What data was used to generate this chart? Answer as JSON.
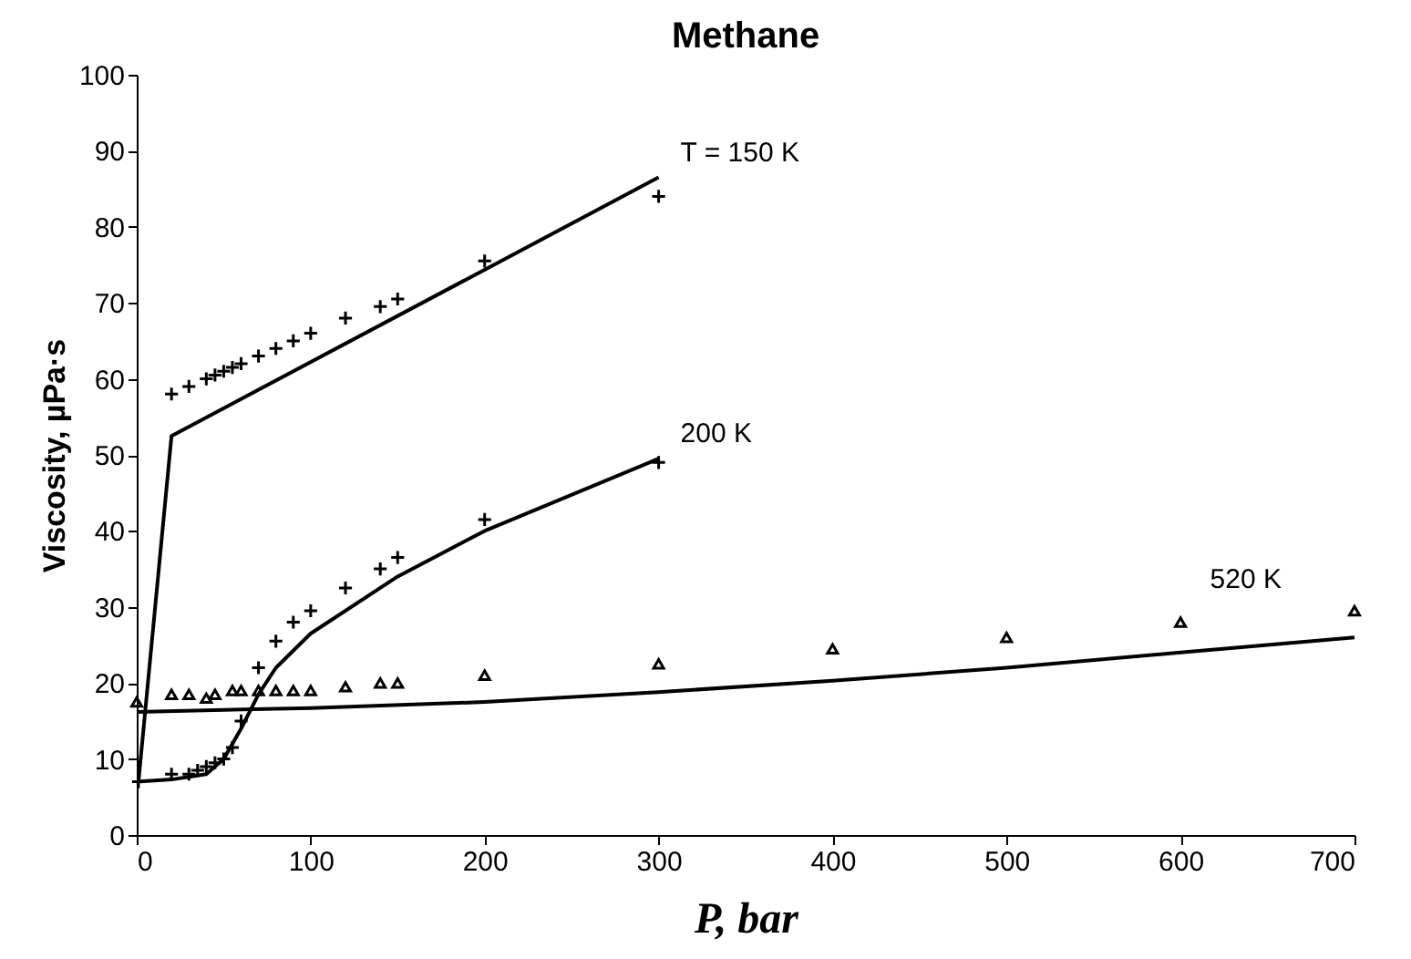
{
  "chart_data": {
    "type": "scatter",
    "title": "Methane",
    "xlabel": "P, bar",
    "ylabel": "Viscosity, µPa·s",
    "xlim": [
      0,
      700
    ],
    "xticks": [
      0,
      100,
      200,
      300,
      400,
      500,
      600,
      700
    ],
    "ylim": [
      0,
      100
    ],
    "yticks": [
      0,
      10,
      20,
      30,
      40,
      50,
      60,
      70,
      80,
      90,
      100
    ],
    "series": [
      {
        "type": "line",
        "name": "T = 150 K",
        "color": "#000000",
        "x": [
          1,
          20,
          300
        ],
        "values": [
          7,
          52.5,
          86.5
        ]
      },
      {
        "type": "line",
        "name": "200 K",
        "color": "#000000",
        "x": [
          0,
          20,
          40,
          50,
          60,
          70,
          80,
          100,
          150,
          200,
          300
        ],
        "values": [
          7,
          7.3,
          8,
          10,
          14,
          18.5,
          22,
          26.5,
          34,
          40,
          49.5
        ]
      },
      {
        "type": "line",
        "name": "520 K",
        "color": "#000000",
        "x": [
          0,
          100,
          200,
          300,
          400,
          500,
          600,
          700
        ],
        "values": [
          16.2,
          16.7,
          17.5,
          18.8,
          20.3,
          22,
          24,
          26
        ]
      },
      {
        "color": "#000000",
        "marker": "cross",
        "x": [
          20,
          30,
          40,
          45,
          50,
          55,
          60,
          70,
          80,
          90,
          100,
          120,
          140,
          150,
          200,
          300
        ],
        "values": [
          58,
          59,
          60,
          60.5,
          61,
          61.5,
          62,
          63,
          64,
          65,
          66,
          68,
          69.5,
          70.5,
          75.5,
          84
        ]
      },
      {
        "color": "#000000",
        "marker": "cross",
        "x": [
          1,
          20,
          30,
          35,
          40,
          45,
          50,
          55,
          60,
          70,
          80,
          90,
          100,
          120,
          140,
          150,
          200,
          300
        ],
        "values": [
          7,
          8,
          8,
          8.5,
          9,
          9.5,
          10,
          11.5,
          15,
          22,
          25.5,
          28,
          29.5,
          32.5,
          35,
          36.5,
          41.5,
          49
        ]
      },
      {
        "color": "#000000",
        "marker": "triangle",
        "x": [
          0,
          20,
          30,
          40,
          45,
          55,
          60,
          70,
          80,
          90,
          100,
          120,
          140,
          150,
          200,
          300,
          400,
          500,
          600,
          700
        ],
        "values": [
          17.5,
          18.5,
          18.5,
          18,
          18.5,
          19,
          19,
          19,
          19,
          19,
          19,
          19.5,
          20,
          20,
          21,
          22.5,
          24.5,
          26,
          28,
          29.5
        ]
      }
    ]
  }
}
